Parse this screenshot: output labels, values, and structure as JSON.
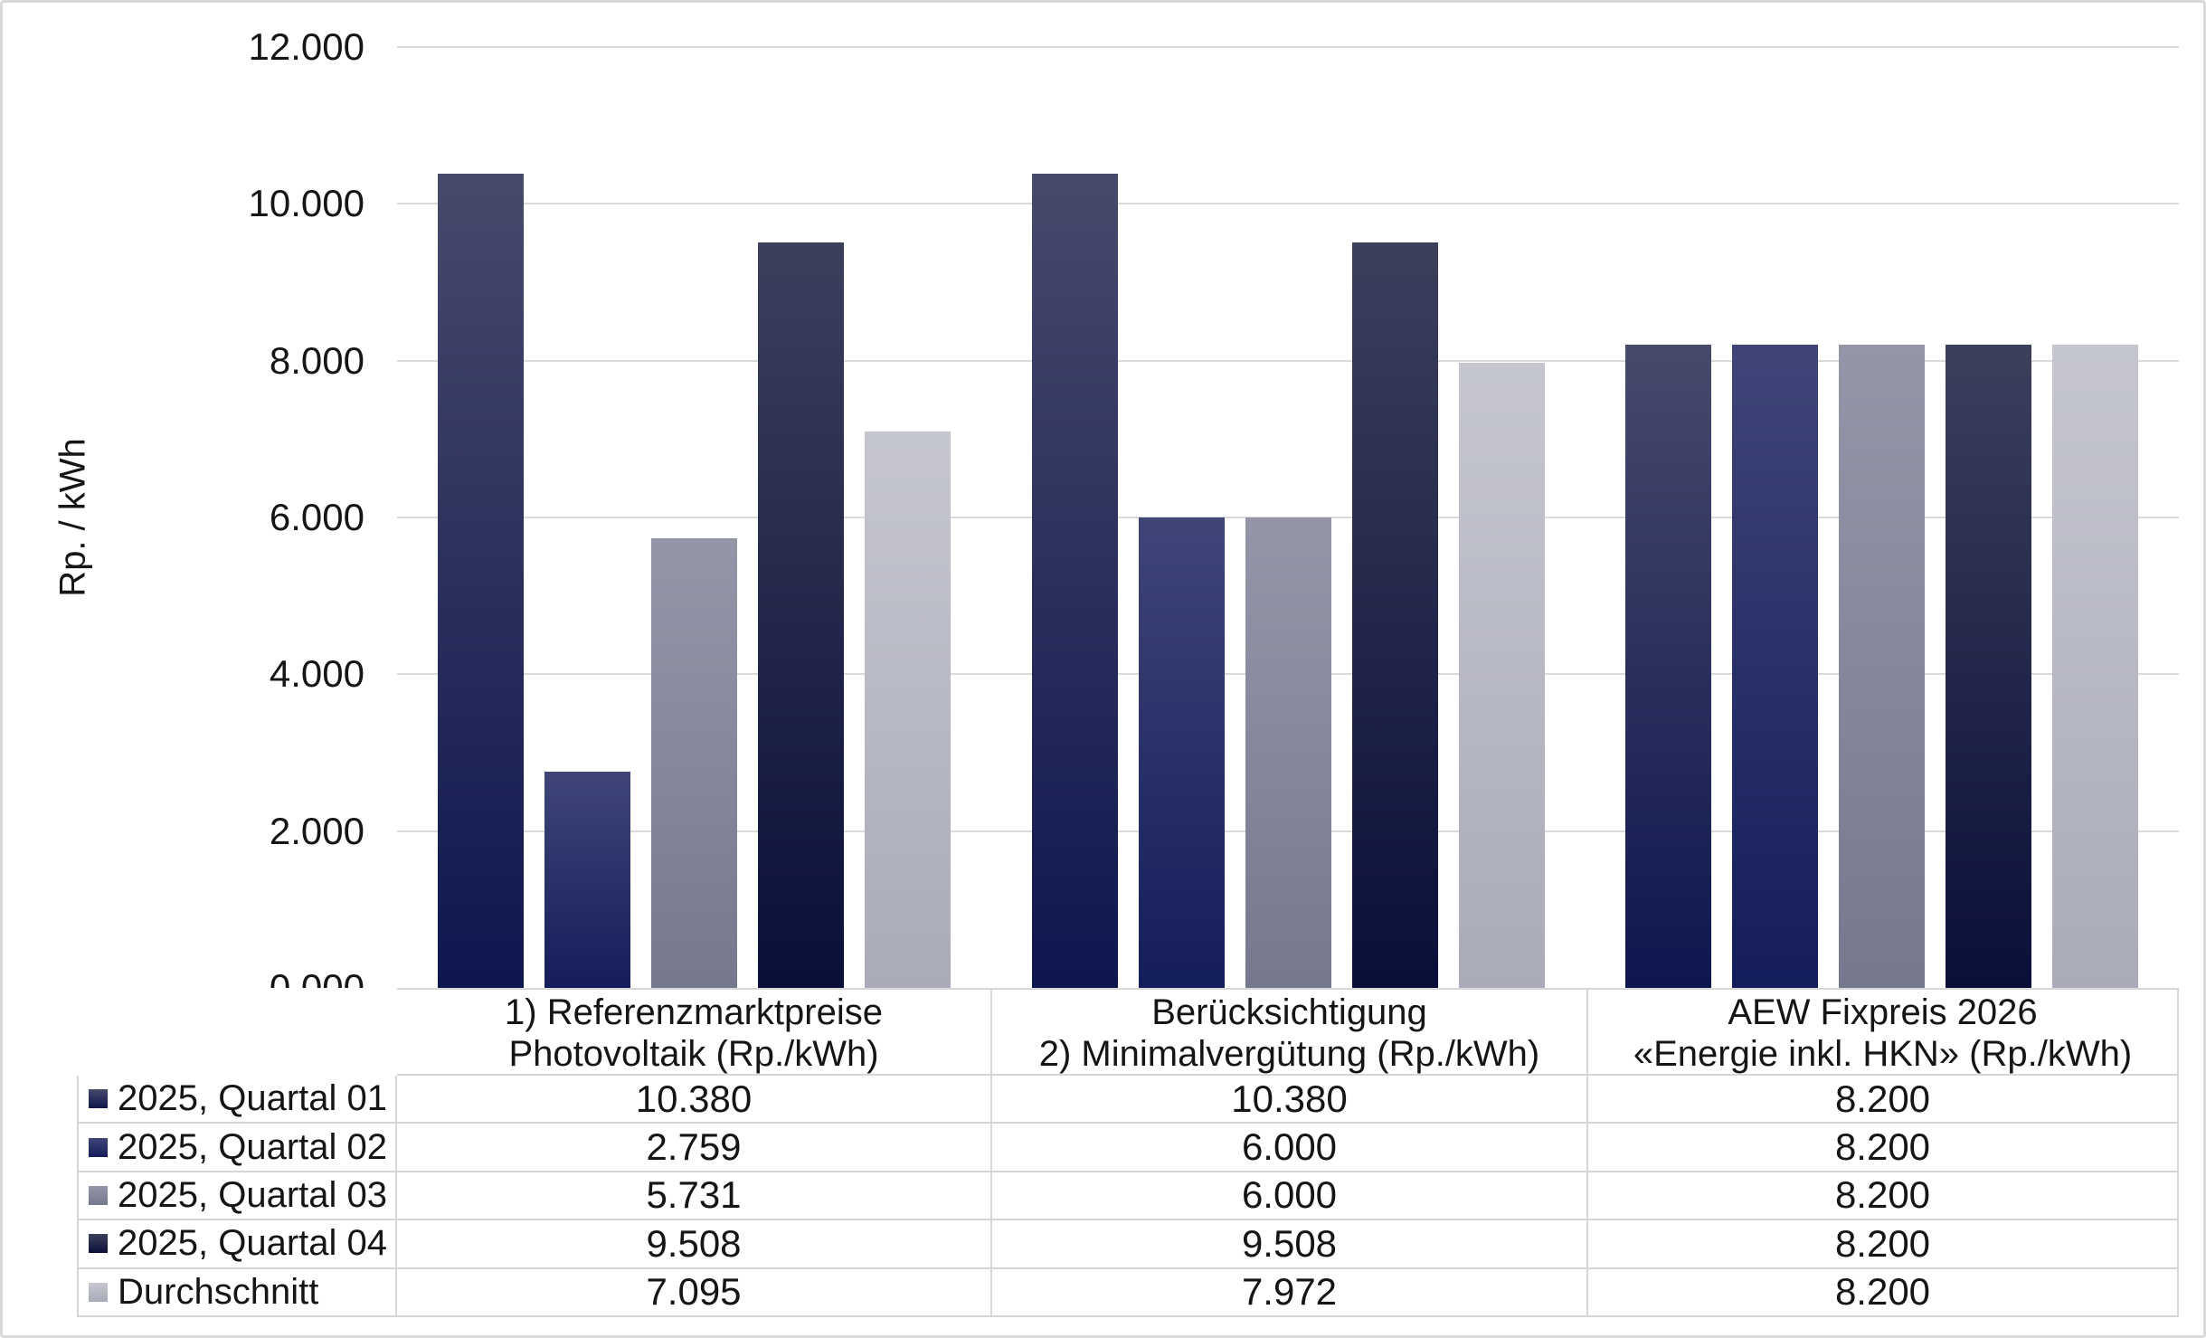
{
  "y_axis": {
    "title": "Rp. / kWh",
    "ticks": [
      {
        "label": "12.000",
        "value": 12
      },
      {
        "label": "10.000",
        "value": 10
      },
      {
        "label": "8.000",
        "value": 8
      },
      {
        "label": "6.000",
        "value": 6
      },
      {
        "label": "4.000",
        "value": 4
      },
      {
        "label": "2.000",
        "value": 2
      },
      {
        "label": "0.000",
        "value": 0
      }
    ]
  },
  "chart_data": {
    "type": "bar",
    "title": "",
    "ylabel": "Rp. / kWh",
    "ylim": [
      0,
      12
    ],
    "grid": "horizontal",
    "legend_position": "table-left-column",
    "categories": [
      {
        "line1": "1) Referenzmarktpreise",
        "line2": "Photovoltaik (Rp./kWh)"
      },
      {
        "line1": "Berücksichtigung",
        "line2": "2) Minimalvergütung (Rp./kWh)"
      },
      {
        "line1": "AEW Fixpreis 2026",
        "line2": "«Energie inkl. HKN» (Rp./kWh)"
      }
    ],
    "series": [
      {
        "name": "2025, Quartal 01",
        "values": [
          10.38,
          10.38,
          8.2
        ],
        "display": [
          "10.380",
          "10.380",
          "8.200"
        ],
        "color_top": "#474A6C",
        "color_bottom": "#0E164E"
      },
      {
        "name": "2025, Quartal 02",
        "values": [
          2.759,
          6.0,
          8.2
        ],
        "display": [
          "2.759",
          "6.000",
          "8.200"
        ],
        "color_top": "#3F4577",
        "color_bottom": "#141D5B"
      },
      {
        "name": "2025, Quartal 03",
        "values": [
          5.731,
          6.0,
          8.2
        ],
        "display": [
          "5.731",
          "6.000",
          "8.200"
        ],
        "color_top": "#9496A8",
        "color_bottom": "#76788D"
      },
      {
        "name": "2025, Quartal 04",
        "values": [
          9.508,
          9.508,
          8.2
        ],
        "display": [
          "9.508",
          "9.508",
          "8.200"
        ],
        "color_top": "#3C3F5C",
        "color_bottom": "#0A0F39"
      },
      {
        "name": "Durchschnitt",
        "values": [
          7.095,
          7.972,
          8.2
        ],
        "display": [
          "7.095",
          "7.972",
          "8.200"
        ],
        "color_top": "#C5C6CF",
        "color_bottom": "#A9ABB9"
      }
    ]
  }
}
